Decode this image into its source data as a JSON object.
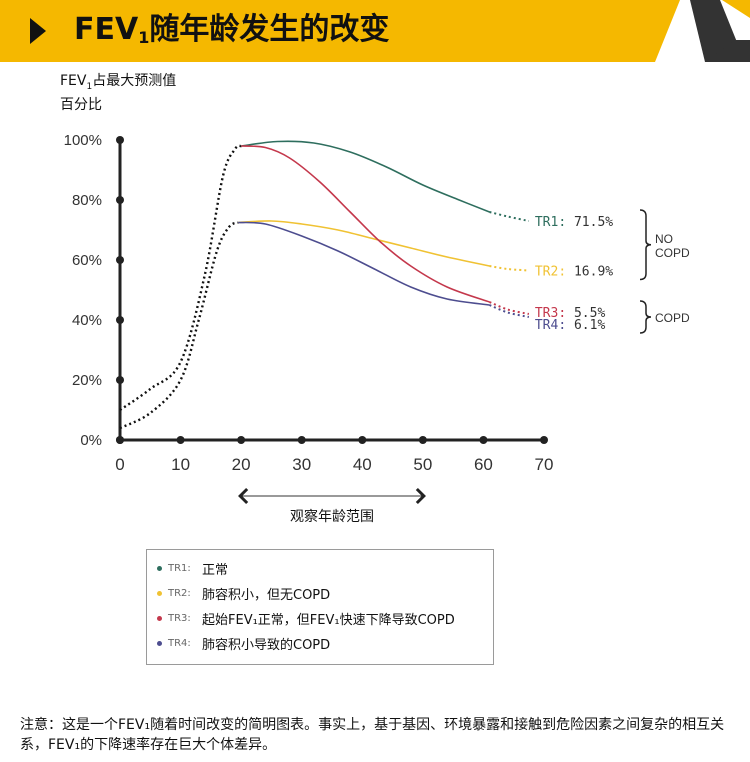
{
  "header": {
    "title_main": "FEV",
    "title_sub": "1",
    "title_rest": "随年龄发生的改变",
    "accent_color": "#f5b800"
  },
  "chart_data": {
    "type": "line",
    "ylabel_main": "FEV",
    "ylabel_sub": "1",
    "ylabel_rest": "占最大预测值百分比",
    "xlabel": "观察年龄范围",
    "xlim": [
      0,
      70
    ],
    "ylim": [
      0,
      100
    ],
    "x_ticks": [
      "0",
      "10",
      "20",
      "30",
      "40",
      "50",
      "60",
      "70"
    ],
    "y_ticks": [
      "0%",
      "20%",
      "40%",
      "60%",
      "80%",
      "100%"
    ],
    "grid": false,
    "early_growth": [
      {
        "name": "",
        "x": [
          0,
          5,
          10,
          14,
          17,
          19,
          20
        ],
        "y": [
          10,
          17,
          26,
          55,
          88,
          97,
          98
        ]
      },
      {
        "name": "",
        "x": [
          0,
          5,
          10,
          13,
          16,
          18,
          19.5
        ],
        "y": [
          4,
          9,
          20,
          40,
          63,
          71,
          72.5
        ]
      }
    ],
    "series": [
      {
        "name": "TR1",
        "color": "#2e6e5e",
        "x": [
          20,
          26,
          32,
          38,
          44,
          50,
          56,
          61
        ],
        "y": [
          98,
          99.5,
          99,
          96,
          91,
          85,
          80,
          76
        ],
        "x_dotted": [
          61,
          64,
          67.5
        ],
        "y_dotted": [
          76,
          74.5,
          73
        ]
      },
      {
        "name": "TR2",
        "color": "#f0c233",
        "x": [
          19.5,
          25,
          30,
          36,
          42,
          48,
          54,
          61
        ],
        "y": [
          72.5,
          73,
          72,
          70,
          67,
          64,
          61,
          58
        ],
        "x_dotted": [
          61,
          64,
          67.5
        ],
        "y_dotted": [
          58,
          57,
          56.5
        ]
      },
      {
        "name": "TR3",
        "color": "#c4384c",
        "x": [
          20,
          24,
          28,
          33,
          38,
          43,
          48,
          54,
          61
        ],
        "y": [
          98,
          97.5,
          94,
          86,
          76,
          66,
          58,
          51,
          46
        ],
        "x_dotted": [
          61,
          64,
          67.5
        ],
        "y_dotted": [
          46,
          43.5,
          42
        ]
      },
      {
        "name": "TR4",
        "color": "#4d4d8f",
        "x": [
          19.5,
          24,
          30,
          36,
          42,
          48,
          54,
          61
        ],
        "y": [
          72.5,
          72,
          68,
          63,
          57,
          51,
          47,
          45
        ],
        "x_dotted": [
          61,
          64,
          67.5
        ],
        "y_dotted": [
          45,
          42.5,
          41
        ]
      }
    ],
    "end_labels": [
      {
        "series": "TR1",
        "text": "TR1: 71.5%"
      },
      {
        "series": "TR2",
        "text": "TR2: 16.9%"
      },
      {
        "series": "TR3",
        "text": "TR3: 5.5%"
      },
      {
        "series": "TR4",
        "text": "TR4: 6.1%"
      }
    ],
    "groups": [
      {
        "label_lines": [
          "NO",
          "COPD"
        ],
        "series": [
          "TR1",
          "TR2"
        ]
      },
      {
        "label_lines": [
          "COPD"
        ],
        "series": [
          "TR3",
          "TR4"
        ]
      }
    ]
  },
  "legend": [
    {
      "code": "TR1:",
      "desc": "正常",
      "color": "#2e6e5e"
    },
    {
      "code": "TR2:",
      "desc": "肺容积小，但无COPD",
      "color": "#f0c233"
    },
    {
      "code": "TR3:",
      "desc": "起始FEV₁正常，但FEV₁快速下降导致COPD",
      "color": "#c4384c"
    },
    {
      "code": "TR4:",
      "desc": "肺容积小导致的COPD",
      "color": "#4d4d8f"
    }
  ],
  "footnote": "注意：这是一个FEV₁随着时间改变的简明图表。事实上，基于基因、环境暴露和接触到危险因素之间复杂的相互关系，FEV₁的下降速率存在巨大个体差异。"
}
